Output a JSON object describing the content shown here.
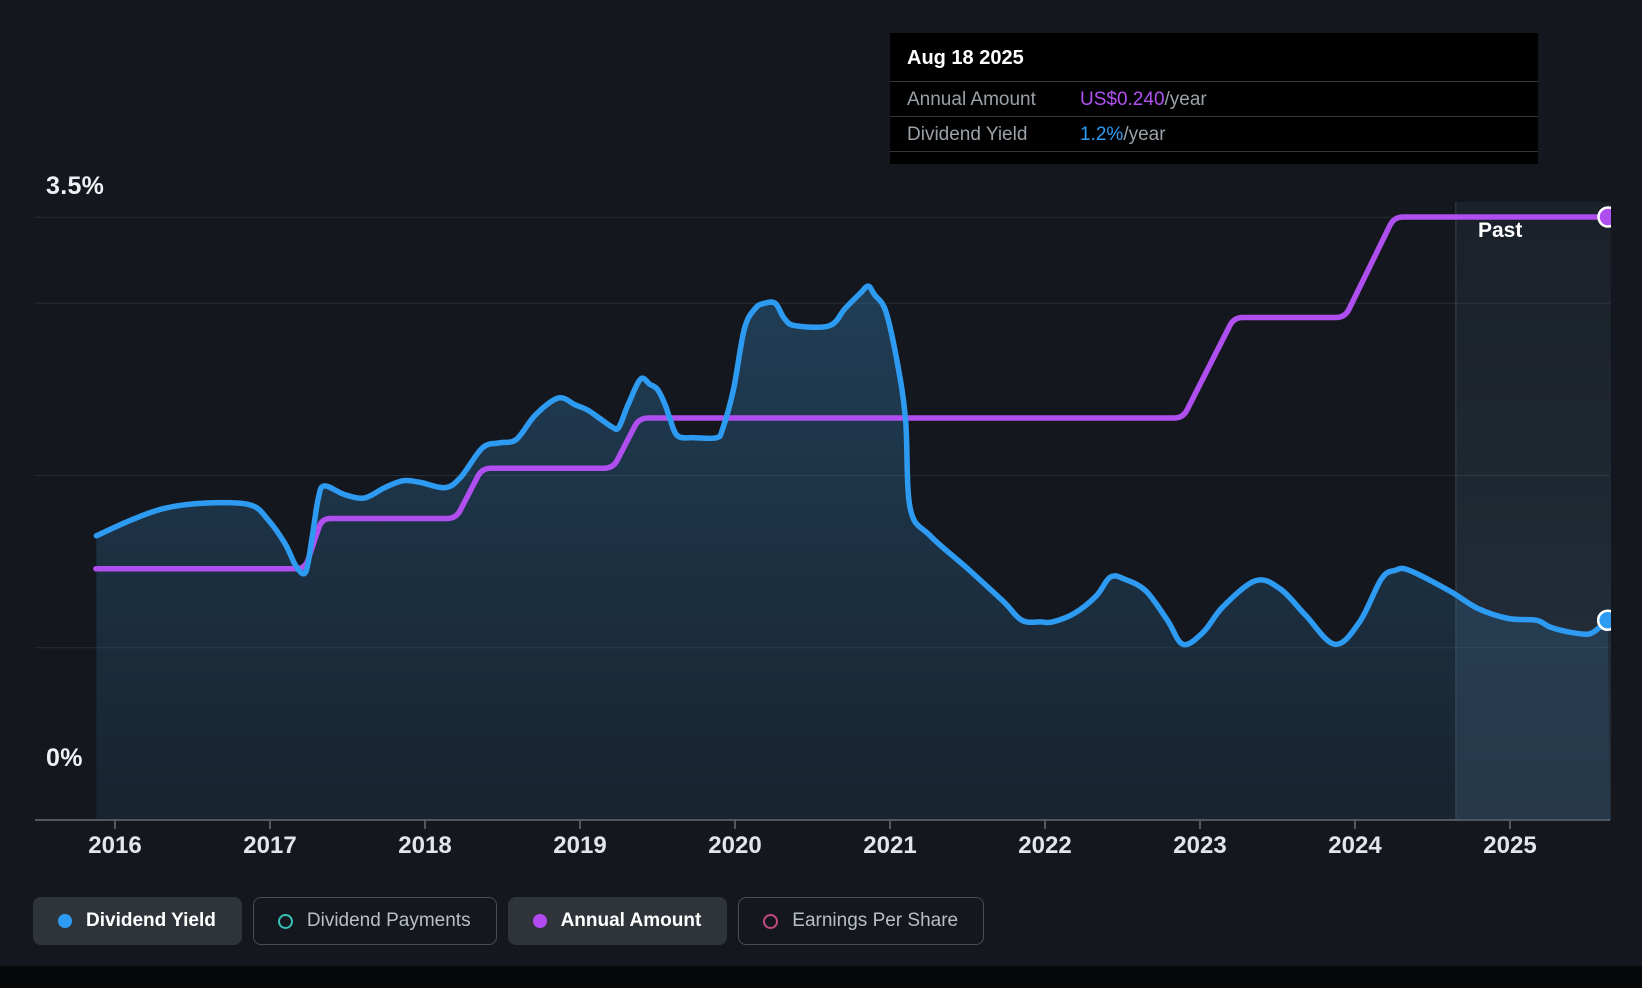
{
  "tooltip": {
    "title": "Aug 18 2025",
    "rows": [
      {
        "label": "Annual Amount",
        "value": "US$0.240",
        "suffix": "/year",
        "color": "#b252f2"
      },
      {
        "label": "Dividend Yield",
        "value": "1.2%",
        "suffix": "/year",
        "color": "#2f9df3"
      }
    ]
  },
  "past_label": "Past",
  "y_axis": {
    "top_label": "3.5%",
    "bottom_label": "0%"
  },
  "legend": [
    {
      "label": "Dividend Yield",
      "marker": "dot",
      "color": "#2b9cf2",
      "active": true
    },
    {
      "label": "Dividend Payments",
      "marker": "ring",
      "color": "#36c2b4",
      "active": false
    },
    {
      "label": "Annual Amount",
      "marker": "dot",
      "color": "#b14af0",
      "active": true
    },
    {
      "label": "Earnings Per Share",
      "marker": "ring",
      "color": "#c2497f",
      "active": false
    }
  ],
  "colors": {
    "yield_line": "#2e9bf2",
    "amount_line": "#b04ff0",
    "grid": "rgba(255,255,255,0.085)",
    "axis": "#51575e",
    "area_top": "rgba(56,135,195,0.34)",
    "area_bottom": "rgba(56,135,195,0.10)",
    "past_tint": "rgba(125,170,215,0.06)",
    "past_tint_bottom": "rgba(125,170,215,0.16)"
  },
  "chart_data": {
    "type": "line",
    "title": "Dividend history: dividend yield (%) and annual dividend amount (US$) over time",
    "x_tick_labels": [
      "2016",
      "2017",
      "2018",
      "2019",
      "2020",
      "2021",
      "2022",
      "2023",
      "2024",
      "2025"
    ],
    "xlim": [
      2015.877,
      2025.645
    ],
    "ylim_pct": [
      0,
      3.5
    ],
    "ylim_usd": [
      0,
      0.24
    ],
    "gridlines_pct": [
      3.5,
      3,
      2,
      1
    ],
    "past_start_year": 2024.65,
    "legend_position": "bottom",
    "series": [
      {
        "name": "Dividend Yield",
        "unit": "%",
        "style": "smooth-area",
        "points": [
          [
            2015.88,
            1.65
          ],
          [
            2016.1,
            1.74
          ],
          [
            2016.32,
            1.81
          ],
          [
            2016.58,
            1.84
          ],
          [
            2016.87,
            1.83
          ],
          [
            2016.99,
            1.74
          ],
          [
            2017.1,
            1.6
          ],
          [
            2017.17,
            1.47
          ],
          [
            2017.23,
            1.44
          ],
          [
            2017.27,
            1.63
          ],
          [
            2017.31,
            1.86
          ],
          [
            2017.35,
            1.94
          ],
          [
            2017.48,
            1.89
          ],
          [
            2017.61,
            1.87
          ],
          [
            2017.74,
            1.93
          ],
          [
            2017.86,
            1.97
          ],
          [
            2017.97,
            1.96
          ],
          [
            2018.13,
            1.93
          ],
          [
            2018.23,
            1.99
          ],
          [
            2018.37,
            2.16
          ],
          [
            2018.48,
            2.19
          ],
          [
            2018.59,
            2.21
          ],
          [
            2018.71,
            2.35
          ],
          [
            2018.86,
            2.45
          ],
          [
            2018.97,
            2.41
          ],
          [
            2019.05,
            2.38
          ],
          [
            2019.13,
            2.33
          ],
          [
            2019.21,
            2.28
          ],
          [
            2019.25,
            2.28
          ],
          [
            2019.31,
            2.41
          ],
          [
            2019.39,
            2.56
          ],
          [
            2019.45,
            2.53
          ],
          [
            2019.5,
            2.5
          ],
          [
            2019.55,
            2.41
          ],
          [
            2019.58,
            2.33
          ],
          [
            2019.63,
            2.23
          ],
          [
            2019.74,
            2.22
          ],
          [
            2019.88,
            2.22
          ],
          [
            2019.92,
            2.27
          ],
          [
            2019.99,
            2.5
          ],
          [
            2020.06,
            2.85
          ],
          [
            2020.13,
            2.97
          ],
          [
            2020.19,
            3.0
          ],
          [
            2020.26,
            3.0
          ],
          [
            2020.32,
            2.91
          ],
          [
            2020.39,
            2.87
          ],
          [
            2020.61,
            2.87
          ],
          [
            2020.71,
            2.97
          ],
          [
            2020.81,
            3.06
          ],
          [
            2020.86,
            3.1
          ],
          [
            2020.9,
            3.05
          ],
          [
            2020.97,
            2.96
          ],
          [
            2021.04,
            2.69
          ],
          [
            2021.1,
            2.33
          ],
          [
            2021.13,
            1.81
          ],
          [
            2021.26,
            1.65
          ],
          [
            2021.5,
            1.46
          ],
          [
            2021.73,
            1.27
          ],
          [
            2021.85,
            1.16
          ],
          [
            2021.97,
            1.15
          ],
          [
            2022.05,
            1.15
          ],
          [
            2022.19,
            1.2
          ],
          [
            2022.33,
            1.3
          ],
          [
            2022.42,
            1.41
          ],
          [
            2022.51,
            1.4
          ],
          [
            2022.65,
            1.33
          ],
          [
            2022.79,
            1.16
          ],
          [
            2022.89,
            1.02
          ],
          [
            2023.02,
            1.09
          ],
          [
            2023.15,
            1.24
          ],
          [
            2023.36,
            1.39
          ],
          [
            2023.52,
            1.34
          ],
          [
            2023.68,
            1.19
          ],
          [
            2023.87,
            1.02
          ],
          [
            2024.03,
            1.15
          ],
          [
            2024.17,
            1.4
          ],
          [
            2024.26,
            1.45
          ],
          [
            2024.35,
            1.45
          ],
          [
            2024.61,
            1.33
          ],
          [
            2024.79,
            1.23
          ],
          [
            2024.99,
            1.17
          ],
          [
            2025.17,
            1.16
          ],
          [
            2025.26,
            1.12
          ],
          [
            2025.39,
            1.09
          ],
          [
            2025.51,
            1.08
          ],
          [
            2025.58,
            1.12
          ],
          [
            2025.63,
            1.16
          ]
        ],
        "end_value_label": "1.2%"
      },
      {
        "name": "Annual Amount",
        "unit": "US$/year",
        "style": "step",
        "points": [
          [
            2015.877,
            0.1
          ],
          [
            2017.226,
            0.1
          ],
          [
            2017.335,
            0.12
          ],
          [
            2018.2,
            0.12
          ],
          [
            2018.368,
            0.14
          ],
          [
            2019.213,
            0.14
          ],
          [
            2019.381,
            0.16
          ],
          [
            2022.89,
            0.16
          ],
          [
            2023.219,
            0.2
          ],
          [
            2023.935,
            0.2
          ],
          [
            2024.252,
            0.24
          ],
          [
            2025.645,
            0.24
          ]
        ],
        "end_value_label": "US$0.240"
      }
    ]
  }
}
